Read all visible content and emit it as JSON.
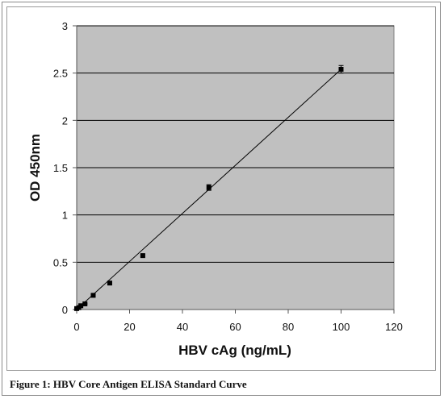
{
  "caption": "Figure 1: HBV Core Antigen ELISA Standard Curve",
  "chart_data": {
    "type": "scatter",
    "xlabel": "HBV cAg (ng/mL)",
    "ylabel": "OD 450nm",
    "xlim": [
      0,
      120
    ],
    "ylim": [
      0,
      3
    ],
    "x_ticks": [
      0,
      20,
      40,
      60,
      80,
      100,
      120
    ],
    "y_ticks": [
      0,
      0.5,
      1,
      1.5,
      2,
      2.5,
      3
    ],
    "y_tick_labels": [
      "0",
      "0.5",
      "1",
      "1.5",
      "2",
      "2.5",
      "3"
    ],
    "grid": "horizontal",
    "plot_background": "#c0c0c0",
    "series": [
      {
        "x": [
          0,
          0.78,
          1.56,
          3.13,
          6.25,
          12.5,
          25,
          50,
          100
        ],
        "y": [
          0.01,
          0.02,
          0.04,
          0.06,
          0.15,
          0.28,
          0.57,
          1.29,
          2.54
        ],
        "error": [
          0.005,
          0.005,
          0.005,
          0.005,
          0.01,
          0.01,
          0.01,
          0.03,
          0.04
        ],
        "color": "#000000"
      }
    ],
    "fit_line": {
      "x": [
        0,
        100
      ],
      "y": [
        0.0,
        2.54
      ]
    }
  }
}
